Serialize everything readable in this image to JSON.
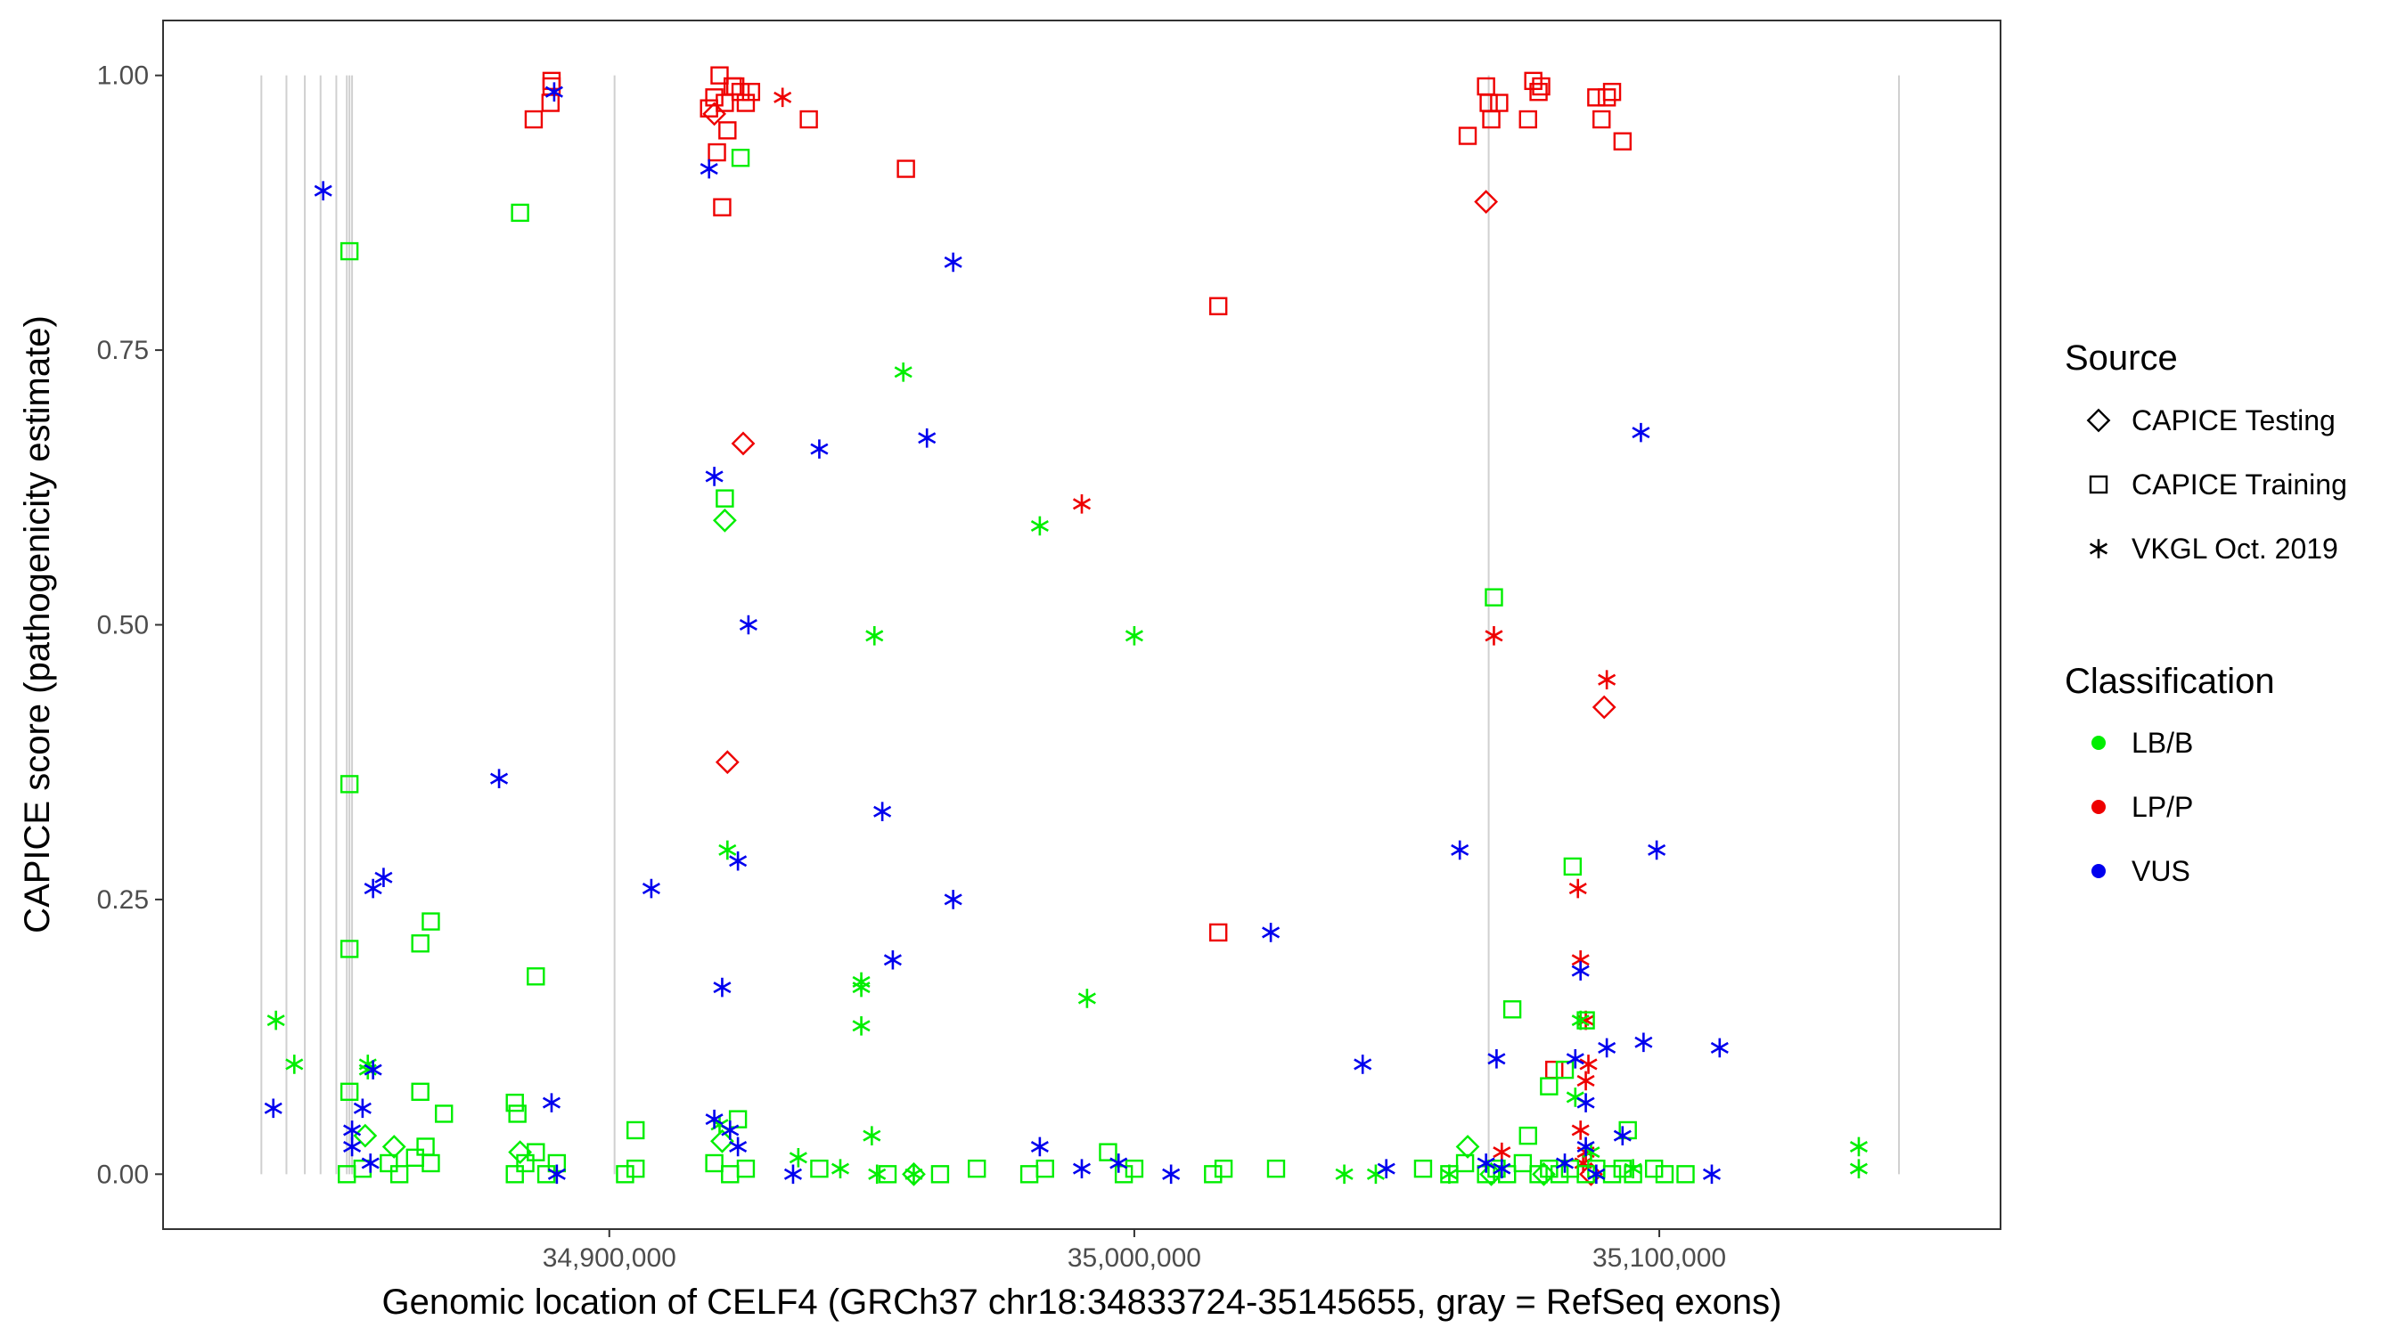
{
  "chart_data": {
    "type": "scatter",
    "xlabel": "Genomic location of CELF4 (GRCh37 chr18:34833724-35145655, gray = RefSeq exons)",
    "ylabel": "CAPICE score (pathogenicity estimate)",
    "xlim": [
      34815000,
      35165000
    ],
    "ylim": [
      -0.05,
      1.05
    ],
    "x_ticks": [
      34900000,
      35000000,
      35100000
    ],
    "x_tick_labels": [
      "34,900,000",
      "35,000,000",
      "35,100,000"
    ],
    "y_ticks": [
      0,
      0.25,
      0.5,
      0.75,
      1.0
    ],
    "y_tick_labels": [
      "0.00",
      "0.25",
      "0.50",
      "0.75",
      "1.00"
    ],
    "exons": [
      34833724,
      34838500,
      34842000,
      34845000,
      34848000,
      34850000,
      34850500,
      34851000,
      34901000,
      35067500,
      35145655
    ],
    "legend": {
      "source_title": "Source",
      "sources": [
        {
          "key": "testing",
          "label": "CAPICE Testing",
          "shape": "diamond"
        },
        {
          "key": "training",
          "label": "CAPICE Training",
          "shape": "square"
        },
        {
          "key": "vkgl",
          "label": "VKGL Oct. 2019",
          "shape": "asterisk"
        }
      ],
      "class_title": "Classification",
      "classes": [
        {
          "key": "LB",
          "label": "LB/B",
          "color": "#00ee00"
        },
        {
          "key": "LP",
          "label": "LP/P",
          "color": "#ee0000"
        },
        {
          "key": "VUS",
          "label": "VUS",
          "color": "#0000ee"
        }
      ]
    },
    "series": [
      {
        "source": "training",
        "class": "LP",
        "points": [
          [
            34889000,
            0.995
          ],
          [
            34889000,
            0.99
          ],
          [
            34888800,
            0.975
          ],
          [
            34885600,
            0.96
          ],
          [
            34921000,
            1.0
          ],
          [
            34919000,
            0.97
          ],
          [
            34920000,
            0.98
          ],
          [
            34922000,
            0.975
          ],
          [
            34924000,
            0.99
          ],
          [
            34925000,
            0.985
          ],
          [
            34926000,
            0.975
          ],
          [
            34923500,
            0.99
          ],
          [
            34927000,
            0.985
          ],
          [
            34920500,
            0.93
          ],
          [
            34922500,
            0.95
          ],
          [
            34921500,
            0.88
          ],
          [
            34938000,
            0.96
          ],
          [
            34956500,
            0.915
          ],
          [
            35063500,
            0.945
          ],
          [
            35067000,
            0.99
          ],
          [
            35067500,
            0.975
          ],
          [
            35068000,
            0.96
          ],
          [
            35069500,
            0.975
          ],
          [
            35075000,
            0.96
          ],
          [
            35076000,
            0.995
          ],
          [
            35077500,
            0.99
          ],
          [
            35077000,
            0.985
          ],
          [
            35088000,
            0.98
          ],
          [
            35089000,
            0.96
          ],
          [
            35090000,
            0.98
          ],
          [
            35091000,
            0.985
          ],
          [
            35093000,
            0.94
          ],
          [
            35016000,
            0.79
          ],
          [
            35016000,
            0.22
          ],
          [
            35080000,
            0.095
          ]
        ]
      },
      {
        "source": "testing",
        "class": "LP",
        "points": [
          [
            34920000,
            0.965
          ],
          [
            34925500,
            0.665
          ],
          [
            34922500,
            0.375
          ],
          [
            35067000,
            0.885
          ],
          [
            35089500,
            0.425
          ],
          [
            35087000,
            0.0
          ]
        ]
      },
      {
        "source": "vkgl",
        "class": "LP",
        "points": [
          [
            34933000,
            0.98
          ],
          [
            34990000,
            0.61
          ],
          [
            35068500,
            0.49
          ],
          [
            35090000,
            0.45
          ],
          [
            35084500,
            0.26
          ],
          [
            35085000,
            0.195
          ],
          [
            35086000,
            0.14
          ],
          [
            35086500,
            0.1
          ],
          [
            35086000,
            0.085
          ],
          [
            35085000,
            0.04
          ],
          [
            35086000,
            0.02
          ],
          [
            35085500,
            0.01
          ],
          [
            35070000,
            0.02
          ]
        ]
      },
      {
        "source": "training",
        "class": "LB",
        "points": [
          [
            34850500,
            0.84
          ],
          [
            34850500,
            0.355
          ],
          [
            34850500,
            0.205
          ],
          [
            34850500,
            0.075
          ],
          [
            34883000,
            0.875
          ],
          [
            34925000,
            0.925
          ],
          [
            34922000,
            0.615
          ],
          [
            34864000,
            0.21
          ],
          [
            34866000,
            0.23
          ],
          [
            34886000,
            0.18
          ],
          [
            34864000,
            0.075
          ],
          [
            34882000,
            0.065
          ],
          [
            34882500,
            0.055
          ],
          [
            34868500,
            0.055
          ],
          [
            34905000,
            0.04
          ],
          [
            34924500,
            0.05
          ],
          [
            35068500,
            0.525
          ],
          [
            35083500,
            0.28
          ],
          [
            35072000,
            0.15
          ],
          [
            35079000,
            0.08
          ],
          [
            35086000,
            0.14
          ],
          [
            35082000,
            0.095
          ],
          [
            35075000,
            0.035
          ],
          [
            35094000,
            0.04
          ],
          [
            34850000,
            0.0
          ],
          [
            34853000,
            0.005
          ],
          [
            34858000,
            0.01
          ],
          [
            34860000,
            0.0
          ],
          [
            34863000,
            0.015
          ],
          [
            34866000,
            0.01
          ],
          [
            34865000,
            0.025
          ],
          [
            34882000,
            0.0
          ],
          [
            34884000,
            0.01
          ],
          [
            34886000,
            0.02
          ],
          [
            34888000,
            0.0
          ],
          [
            34890000,
            0.01
          ],
          [
            34903000,
            0.0
          ],
          [
            34905000,
            0.005
          ],
          [
            34920000,
            0.01
          ],
          [
            34923000,
            0.0
          ],
          [
            34926000,
            0.005
          ],
          [
            34940000,
            0.005
          ],
          [
            34953000,
            0.0
          ],
          [
            34963000,
            0.0
          ],
          [
            34970000,
            0.005
          ],
          [
            34980000,
            0.0
          ],
          [
            34983000,
            0.005
          ],
          [
            34995000,
            0.02
          ],
          [
            34998000,
            0.0
          ],
          [
            35000000,
            0.005
          ],
          [
            35015000,
            0.0
          ],
          [
            35017000,
            0.005
          ],
          [
            35027000,
            0.005
          ],
          [
            35055000,
            0.005
          ],
          [
            35060000,
            0.0
          ],
          [
            35063000,
            0.01
          ],
          [
            35067000,
            0.0
          ],
          [
            35069000,
            0.005
          ],
          [
            35071000,
            0.0
          ],
          [
            35074000,
            0.01
          ],
          [
            35077000,
            0.0
          ],
          [
            35079000,
            0.005
          ],
          [
            35081000,
            0.0
          ],
          [
            35083000,
            0.005
          ],
          [
            35086000,
            0.0
          ],
          [
            35088000,
            0.005
          ],
          [
            35091000,
            0.0
          ],
          [
            35093000,
            0.005
          ],
          [
            35095000,
            0.0
          ],
          [
            35099000,
            0.005
          ],
          [
            35101000,
            0.0
          ],
          [
            35105000,
            0.0
          ]
        ]
      },
      {
        "source": "testing",
        "class": "LB",
        "points": [
          [
            34922000,
            0.595
          ],
          [
            34853500,
            0.035
          ],
          [
            34859000,
            0.025
          ],
          [
            34883000,
            0.02
          ],
          [
            34921500,
            0.03
          ],
          [
            35063500,
            0.025
          ],
          [
            35068000,
            0.0
          ],
          [
            35078000,
            0.0
          ],
          [
            34958000,
            0.0
          ]
        ]
      },
      {
        "source": "vkgl",
        "class": "LB",
        "points": [
          [
            34836500,
            0.14
          ],
          [
            34840000,
            0.1
          ],
          [
            34956000,
            0.73
          ],
          [
            34982000,
            0.59
          ],
          [
            34950500,
            0.49
          ],
          [
            35000000,
            0.49
          ],
          [
            34922500,
            0.295
          ],
          [
            34948000,
            0.175
          ],
          [
            34948000,
            0.17
          ],
          [
            34948000,
            0.135
          ],
          [
            34991000,
            0.16
          ],
          [
            34854000,
            0.1
          ],
          [
            34854000,
            0.095
          ],
          [
            35085000,
            0.14
          ],
          [
            35084000,
            0.07
          ],
          [
            34921000,
            0.045
          ],
          [
            34950000,
            0.035
          ],
          [
            35138000,
            0.025
          ],
          [
            35138000,
            0.005
          ],
          [
            34936000,
            0.015
          ],
          [
            34944000,
            0.005
          ],
          [
            34951000,
            0.0
          ],
          [
            34958000,
            0.0
          ],
          [
            35040000,
            0.0
          ],
          [
            35046000,
            0.0
          ],
          [
            35060000,
            0.0
          ],
          [
            35087000,
            0.02
          ],
          [
            35095000,
            0.005
          ]
        ]
      },
      {
        "source": "vkgl",
        "class": "VUS",
        "points": [
          [
            34845500,
            0.895
          ],
          [
            34889500,
            0.985
          ],
          [
            34919000,
            0.915
          ],
          [
            34920000,
            0.635
          ],
          [
            34926500,
            0.5
          ],
          [
            34940000,
            0.66
          ],
          [
            34960500,
            0.67
          ],
          [
            34965500,
            0.83
          ],
          [
            34952000,
            0.33
          ],
          [
            34879000,
            0.36
          ],
          [
            34908000,
            0.26
          ],
          [
            34857000,
            0.27
          ],
          [
            34855000,
            0.26
          ],
          [
            34924500,
            0.285
          ],
          [
            34921500,
            0.17
          ],
          [
            34954000,
            0.195
          ],
          [
            34965500,
            0.25
          ],
          [
            35026000,
            0.22
          ],
          [
            35062000,
            0.295
          ],
          [
            35099500,
            0.295
          ],
          [
            35096500,
            0.675
          ],
          [
            34855000,
            0.095
          ],
          [
            34836000,
            0.06
          ],
          [
            34853000,
            0.06
          ],
          [
            34889000,
            0.065
          ],
          [
            35043500,
            0.1
          ],
          [
            35069000,
            0.105
          ],
          [
            35084000,
            0.105
          ],
          [
            35090000,
            0.115
          ],
          [
            35097000,
            0.12
          ],
          [
            35111500,
            0.115
          ],
          [
            35085000,
            0.185
          ],
          [
            35086000,
            0.065
          ],
          [
            34920000,
            0.05
          ],
          [
            34924500,
            0.025
          ],
          [
            34923000,
            0.04
          ],
          [
            34851000,
            0.04
          ],
          [
            34851000,
            0.025
          ],
          [
            34854500,
            0.01
          ],
          [
            34890000,
            0.0
          ],
          [
            34935000,
            0.0
          ],
          [
            34982000,
            0.025
          ],
          [
            34990000,
            0.005
          ],
          [
            34997000,
            0.01
          ],
          [
            35007000,
            0.0
          ],
          [
            35048000,
            0.005
          ],
          [
            35067000,
            0.01
          ],
          [
            35070000,
            0.005
          ],
          [
            35082000,
            0.01
          ],
          [
            35086000,
            0.025
          ],
          [
            35088000,
            0.0
          ],
          [
            35093000,
            0.035
          ],
          [
            35110000,
            0.0
          ]
        ]
      }
    ]
  }
}
